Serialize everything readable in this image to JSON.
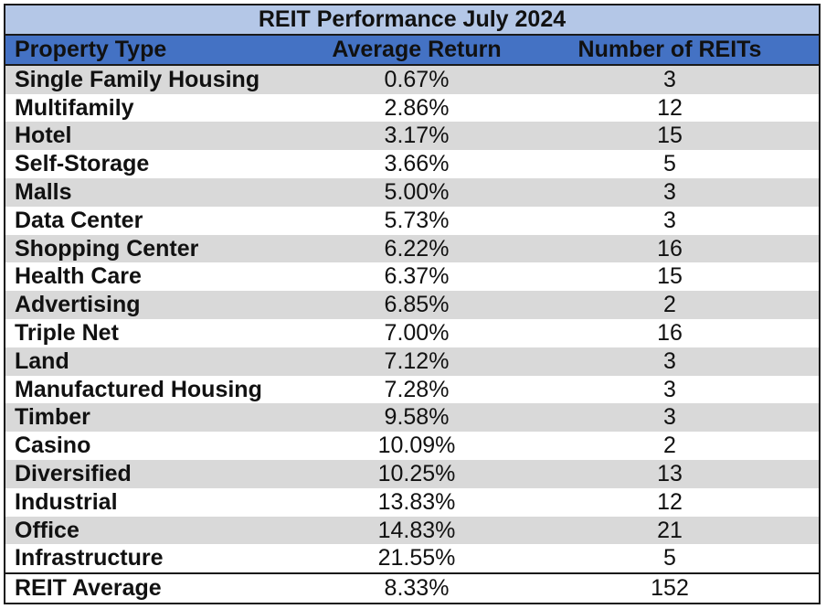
{
  "chart_data": {
    "type": "table",
    "title": "REIT Performance July 2024",
    "columns": [
      "Property Type",
      "Average Return",
      "Number of REITs"
    ],
    "rows": [
      {
        "property_type": "Single Family Housing",
        "average_return": "0.67%",
        "number_of_reits": "3"
      },
      {
        "property_type": "Multifamily",
        "average_return": "2.86%",
        "number_of_reits": "12"
      },
      {
        "property_type": "Hotel",
        "average_return": "3.17%",
        "number_of_reits": "15"
      },
      {
        "property_type": "Self-Storage",
        "average_return": "3.66%",
        "number_of_reits": "5"
      },
      {
        "property_type": "Malls",
        "average_return": "5.00%",
        "number_of_reits": "3"
      },
      {
        "property_type": "Data Center",
        "average_return": "5.73%",
        "number_of_reits": "3"
      },
      {
        "property_type": "Shopping Center",
        "average_return": "6.22%",
        "number_of_reits": "16"
      },
      {
        "property_type": "Health Care",
        "average_return": "6.37%",
        "number_of_reits": "15"
      },
      {
        "property_type": "Advertising",
        "average_return": "6.85%",
        "number_of_reits": "2"
      },
      {
        "property_type": "Triple Net",
        "average_return": "7.00%",
        "number_of_reits": "16"
      },
      {
        "property_type": "Land",
        "average_return": "7.12%",
        "number_of_reits": "3"
      },
      {
        "property_type": "Manufactured Housing",
        "average_return": "7.28%",
        "number_of_reits": "3"
      },
      {
        "property_type": "Timber",
        "average_return": "9.58%",
        "number_of_reits": "3"
      },
      {
        "property_type": "Casino",
        "average_return": "10.09%",
        "number_of_reits": "2"
      },
      {
        "property_type": "Diversified",
        "average_return": "10.25%",
        "number_of_reits": "13"
      },
      {
        "property_type": "Industrial",
        "average_return": "13.83%",
        "number_of_reits": "12"
      },
      {
        "property_type": "Office",
        "average_return": "14.83%",
        "number_of_reits": "21"
      },
      {
        "property_type": "Infrastructure",
        "average_return": "21.55%",
        "number_of_reits": "5"
      }
    ],
    "total": {
      "property_type": "REIT Average",
      "average_return": "8.33%",
      "number_of_reits": "152"
    }
  },
  "colors": {
    "title_bg": "#b4c7e7",
    "header_bg": "#4472c4",
    "shaded_row": "#d9d9d9",
    "plain_row": "#ffffff"
  }
}
